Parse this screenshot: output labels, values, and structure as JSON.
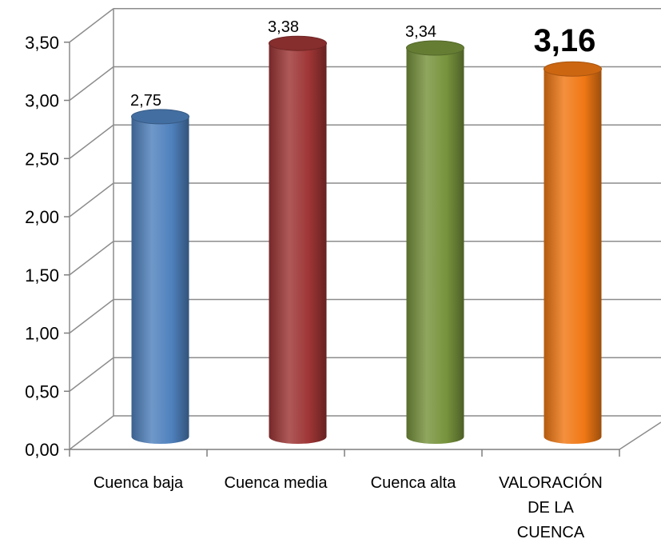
{
  "chart_data": {
    "type": "bar",
    "style": "3d-cylinder",
    "categories": [
      "Cuenca baja",
      "Cuenca media",
      "Cuenca alta",
      "VALORACIÓN DE LA CUENCA"
    ],
    "category_label_lines": [
      [
        "Cuenca baja"
      ],
      [
        "Cuenca media"
      ],
      [
        "Cuenca alta"
      ],
      [
        "VALORACIÓN",
        "DE LA",
        "CUENCA"
      ]
    ],
    "values": [
      2.75,
      3.38,
      3.34,
      3.16
    ],
    "value_labels": [
      "2,75",
      "3,38",
      "3,34",
      "3,16"
    ],
    "highlight_index": 3,
    "yticks": [
      "0,00",
      "0,50",
      "1,00",
      "1,50",
      "2,00",
      "2,50",
      "3,00",
      "3,50"
    ],
    "ylim": [
      0,
      3.5
    ],
    "grid": true,
    "legend": "none",
    "colors": {
      "bars": [
        "#4F81BD",
        "#9E3535",
        "#77933C",
        "#F07814"
      ],
      "grid": "#8C8C8C",
      "axis": "#7F7F7F"
    }
  }
}
